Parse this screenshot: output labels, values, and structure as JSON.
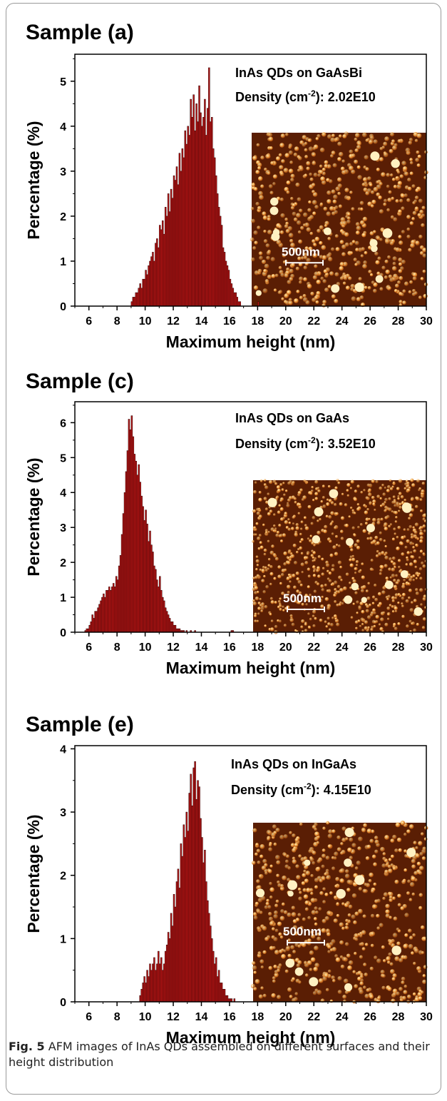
{
  "caption": {
    "label": "Fig. 5",
    "text": "AFM images of InAs QDs assembled on different surfaces and their height distribution"
  },
  "colors": {
    "bar_fill": "#b81414",
    "bar_edge": "#2a0505",
    "afm_base": "#5a1e04",
    "afm_dot": "#ffcf7a"
  },
  "chart_data": [
    {
      "type": "bar",
      "title": "Sample (a)",
      "xlabel": "Maximum height (nm)",
      "ylabel": "Percentage (%)",
      "xlim": [
        5,
        30
      ],
      "ylim": [
        0,
        5.6
      ],
      "xticks": [
        6,
        8,
        10,
        12,
        14,
        16,
        18,
        20,
        22,
        24,
        26,
        28,
        30
      ],
      "yticks": [
        0,
        1,
        2,
        3,
        4,
        5
      ],
      "annotation_line1": "InAs QDs on GaAsBi",
      "annotation_line2": "Density (cm",
      "annotation_sup": "-2",
      "annotation_value": "): 2.02E10",
      "inset_scale": "500nm",
      "bin_width": 0.1,
      "bins_x_start": 9.0,
      "values": [
        0.1,
        0.2,
        0.2,
        0.3,
        0.3,
        0.4,
        0.5,
        0.4,
        0.6,
        0.6,
        0.8,
        0.7,
        0.9,
        1.0,
        1.1,
        1.2,
        1.0,
        1.4,
        1.5,
        1.3,
        1.8,
        1.7,
        1.9,
        1.6,
        2.2,
        2.0,
        2.5,
        2.1,
        2.6,
        2.4,
        2.9,
        2.8,
        3.1,
        2.7,
        3.4,
        3.0,
        3.5,
        3.3,
        3.9,
        3.6,
        4.0,
        3.8,
        4.6,
        4.2,
        4.7,
        3.9,
        4.5,
        4.1,
        4.9,
        4.3,
        4.0,
        4.2,
        4.6,
        3.8,
        4.4,
        5.3,
        4.1,
        4.2,
        3.5,
        3.3,
        2.9,
        2.5,
        2.2,
        2.0,
        1.8,
        1.3,
        1.2,
        1.0,
        0.9,
        0.8,
        0.6,
        0.5,
        0.4,
        0.3,
        0.3,
        0.2,
        0.1,
        0.1,
        0.0,
        0.0,
        0.0,
        0.0,
        0.0,
        0.0,
        0.0,
        0.0,
        0.0,
        0.0,
        0.0,
        0.0,
        0.1,
        0.0
      ],
      "inset_variant": "dense-large"
    },
    {
      "type": "bar",
      "title": "Sample (c)",
      "xlabel": "Maximum height (nm)",
      "ylabel": "Percentage (%)",
      "xlim": [
        5,
        30
      ],
      "ylim": [
        0,
        6.6
      ],
      "xticks": [
        6,
        8,
        10,
        12,
        14,
        16,
        18,
        20,
        22,
        24,
        26,
        28,
        30
      ],
      "yticks": [
        0,
        1,
        2,
        3,
        4,
        5,
        6
      ],
      "annotation_line1": "InAs QDs on GaAs",
      "annotation_line2": "Density (cm",
      "annotation_sup": "-2",
      "annotation_value": "): 3.52E10",
      "inset_scale": "500nm",
      "bin_width": 0.1,
      "bins_x_start": 5.7,
      "values": [
        0.05,
        0.1,
        0.1,
        0.2,
        0.3,
        0.5,
        0.4,
        0.6,
        0.6,
        0.7,
        0.8,
        0.9,
        1.0,
        1.1,
        1.0,
        1.2,
        1.2,
        1.3,
        1.2,
        1.3,
        1.4,
        1.3,
        1.6,
        1.5,
        1.9,
        2.2,
        2.8,
        3.4,
        4.0,
        4.6,
        5.2,
        6.1,
        5.8,
        6.2,
        5.6,
        5.1,
        4.9,
        4.5,
        4.8,
        4.3,
        3.9,
        3.6,
        3.2,
        3.5,
        3.1,
        2.6,
        2.9,
        2.5,
        2.3,
        1.9,
        1.8,
        1.5,
        1.3,
        1.6,
        1.2,
        1.0,
        0.9,
        0.7,
        0.6,
        0.5,
        0.4,
        0.3,
        0.3,
        0.2,
        0.2,
        0.1,
        0.1,
        0.1,
        0.05,
        0.05,
        0.05,
        0.0,
        0.05,
        0.0,
        0.0,
        0.05,
        0.0,
        0.0,
        0.05,
        0.0,
        0.0,
        0.0,
        0.0,
        0.0,
        0.0,
        0.0,
        0.0,
        0.0,
        0.0,
        0.0,
        0.0,
        0.0,
        0.0,
        0.0,
        0.0,
        0.0,
        0.0,
        0.0,
        0.0,
        0.0,
        0.0,
        0.0,
        0.0,
        0.0,
        0.05,
        0.05
      ],
      "inset_variant": "dense-small"
    },
    {
      "type": "bar",
      "title": "Sample (e)",
      "xlabel": "Maximum height (nm)",
      "ylabel": "Percentage (%)",
      "xlim": [
        5,
        30
      ],
      "ylim": [
        0,
        4.05
      ],
      "xticks": [
        6,
        8,
        10,
        12,
        14,
        16,
        18,
        20,
        22,
        24,
        26,
        28,
        30
      ],
      "yticks": [
        0,
        1,
        2,
        3,
        4
      ],
      "annotation_line1": "InAs QDs on InGaAs",
      "annotation_line2": "Density (cm",
      "annotation_sup": "-2",
      "annotation_value": "): 4.15E10",
      "inset_scale": "500nm",
      "bin_width": 0.1,
      "bins_x_start": 9.6,
      "values": [
        0.1,
        0.2,
        0.3,
        0.4,
        0.3,
        0.5,
        0.4,
        0.6,
        0.5,
        0.6,
        0.7,
        0.5,
        0.6,
        0.8,
        0.6,
        0.7,
        0.5,
        0.6,
        0.8,
        0.9,
        1.1,
        1.0,
        1.4,
        1.2,
        1.7,
        1.5,
        1.9,
        2.1,
        1.8,
        2.5,
        2.3,
        2.8,
        2.6,
        3.0,
        2.7,
        3.3,
        3.6,
        3.1,
        3.7,
        3.8,
        3.2,
        3.5,
        3.4,
        2.9,
        2.6,
        2.2,
        2.4,
        1.9,
        1.6,
        1.4,
        1.2,
        1.0,
        0.8,
        0.6,
        0.7,
        0.4,
        0.5,
        0.3,
        0.3,
        0.2,
        0.2,
        0.1,
        0.1,
        0.05,
        0.05,
        0.05,
        0.0,
        0.05
      ],
      "inset_variant": "dense-uniform"
    }
  ]
}
